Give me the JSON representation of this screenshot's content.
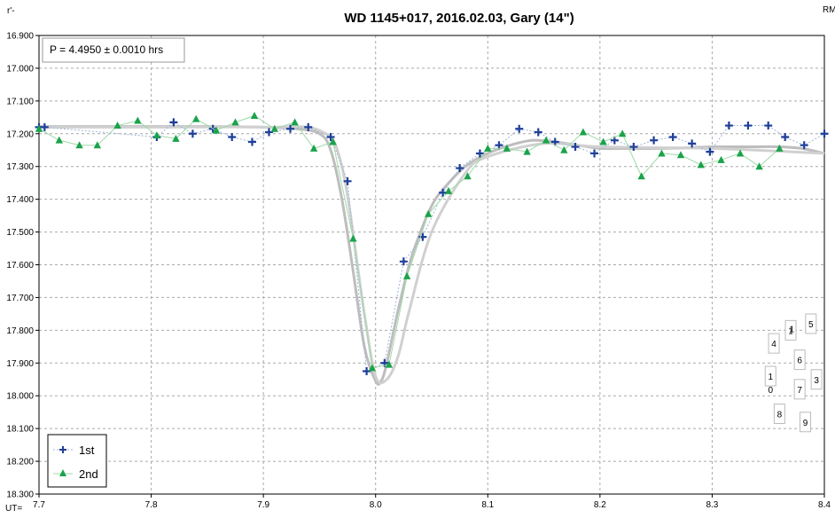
{
  "chart_data": {
    "type": "scatter",
    "title": "WD 1145+017, 2016.02.03,  Gary (14\")",
    "ylabel": "r'-",
    "xlabel": "UT=",
    "corner_label": "RM",
    "annotation": "P = 4.4950 ± 0.0010 hrs",
    "xlim": [
      7.7,
      8.4
    ],
    "ylim": [
      16.9,
      18.3
    ],
    "y_inverted": true,
    "grid": true,
    "legend_position": "bottom-left",
    "x_ticks": [
      "7.7",
      "7.8",
      "7.9",
      "8.0",
      "8.1",
      "8.2",
      "8.3",
      "8.4"
    ],
    "y_ticks": [
      "16.900",
      "17.000",
      "17.100",
      "17.200",
      "17.300",
      "17.400",
      "17.500",
      "17.600",
      "17.700",
      "17.800",
      "17.900",
      "18.000",
      "18.100",
      "18.200",
      "18.300"
    ],
    "series": [
      {
        "name": "1st",
        "marker": "plus",
        "color": "#1f3f99",
        "line_color": "#9fb4d8",
        "x": [
          7.7,
          7.705,
          7.805,
          7.82,
          7.837,
          7.855,
          7.872,
          7.89,
          7.905,
          7.924,
          7.94,
          7.96,
          7.975,
          7.992,
          8.008,
          8.025,
          8.042,
          8.06,
          8.075,
          8.093,
          8.11,
          8.128,
          8.145,
          8.16,
          8.178,
          8.195,
          8.213,
          8.23,
          8.248,
          8.265,
          8.282,
          8.298,
          8.315,
          8.332,
          8.35,
          8.365,
          8.382,
          8.4
        ],
        "y": [
          17.18,
          17.18,
          17.21,
          17.165,
          17.2,
          17.185,
          17.21,
          17.225,
          17.195,
          17.185,
          17.18,
          17.21,
          17.345,
          17.925,
          17.9,
          17.59,
          17.515,
          17.38,
          17.305,
          17.26,
          17.235,
          17.185,
          17.195,
          17.225,
          17.24,
          17.26,
          17.22,
          17.24,
          17.22,
          17.21,
          17.23,
          17.255,
          17.175,
          17.175,
          17.175,
          17.21,
          17.235,
          17.2
        ]
      },
      {
        "name": "2nd",
        "marker": "triangle",
        "color": "#1aa34a",
        "line_color": "#9fd9a9",
        "x": [
          7.7,
          7.718,
          7.736,
          7.752,
          7.77,
          7.788,
          7.805,
          7.822,
          7.84,
          7.858,
          7.875,
          7.892,
          7.91,
          7.928,
          7.945,
          7.962,
          7.98,
          7.997,
          8.012,
          8.028,
          8.047,
          8.065,
          8.082,
          8.1,
          8.117,
          8.135,
          8.152,
          8.168,
          8.185,
          8.203,
          8.22,
          8.237,
          8.255,
          8.272,
          8.29,
          8.308,
          8.325,
          8.342,
          8.36
        ],
        "y": [
          17.185,
          17.22,
          17.235,
          17.235,
          17.175,
          17.16,
          17.205,
          17.215,
          17.155,
          17.19,
          17.165,
          17.145,
          17.185,
          17.165,
          17.245,
          17.225,
          17.52,
          17.915,
          17.905,
          17.635,
          17.445,
          17.375,
          17.33,
          17.245,
          17.245,
          17.255,
          17.22,
          17.25,
          17.195,
          17.225,
          17.2,
          17.33,
          17.26,
          17.265,
          17.295,
          17.28,
          17.26,
          17.3,
          17.245
        ]
      }
    ],
    "model_curves": [
      {
        "color": "#bdbdbd",
        "x": [
          7.7,
          7.75,
          7.8,
          7.85,
          7.9,
          7.93,
          7.95,
          7.96,
          7.97,
          7.98,
          7.99,
          8.0,
          8.005,
          8.01,
          8.02,
          8.03,
          8.04,
          8.05,
          8.06,
          8.08,
          8.1,
          8.12,
          8.14,
          8.16,
          8.18,
          8.2,
          8.22,
          8.25,
          8.28,
          8.3,
          8.33,
          8.36,
          8.38,
          8.4
        ],
        "y": [
          17.178,
          17.178,
          17.178,
          17.178,
          17.18,
          17.185,
          17.2,
          17.25,
          17.4,
          17.62,
          17.85,
          17.955,
          17.955,
          17.9,
          17.74,
          17.6,
          17.5,
          17.42,
          17.37,
          17.3,
          17.26,
          17.235,
          17.22,
          17.225,
          17.235,
          17.245,
          17.245,
          17.245,
          17.243,
          17.24,
          17.24,
          17.24,
          17.245,
          17.26
        ]
      },
      {
        "color": "#d0d0d0",
        "x": [
          7.7,
          7.8,
          7.9,
          7.95,
          7.97,
          7.99,
          8.0,
          8.01,
          8.02,
          8.03,
          8.05,
          8.08,
          8.1,
          8.15,
          8.2,
          8.3,
          8.4
        ],
        "y": [
          17.18,
          17.18,
          17.18,
          17.19,
          17.3,
          17.75,
          17.94,
          17.95,
          17.88,
          17.74,
          17.5,
          17.32,
          17.27,
          17.23,
          17.24,
          17.245,
          17.26
        ]
      }
    ],
    "label_boxes": [
      {
        "text": "1",
        "x": 8.37,
        "y": 17.8
      },
      {
        "text": "5",
        "x": 8.388,
        "y": 17.78
      },
      {
        "text": "4",
        "x": 8.355,
        "y": 17.84
      },
      {
        "text": "6",
        "x": 8.378,
        "y": 17.89
      },
      {
        "text": "1",
        "x": 8.352,
        "y": 17.94
      },
      {
        "text": "3",
        "x": 8.393,
        "y": 17.95
      },
      {
        "text": "7",
        "x": 8.378,
        "y": 17.98
      },
      {
        "text": "8",
        "x": 8.36,
        "y": 18.055
      },
      {
        "text": "9",
        "x": 8.383,
        "y": 18.08
      }
    ],
    "extra_text": [
      {
        "text": "1",
        "x": 8.371,
        "y": 17.795
      },
      {
        "text": "0",
        "x": 8.352,
        "y": 17.98
      }
    ]
  }
}
